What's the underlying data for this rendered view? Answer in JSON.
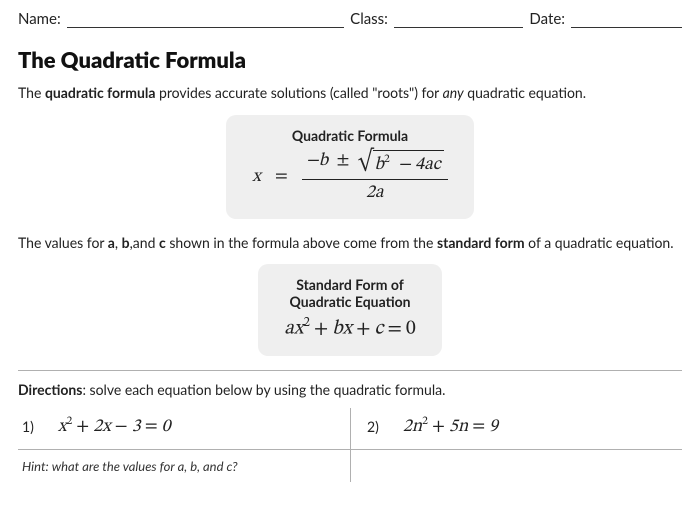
{
  "header": {
    "name_label": "Name:",
    "class_label": "Class:",
    "date_label": "Date:"
  },
  "title": "The Quadratic Formula",
  "intro": {
    "pre": "The ",
    "bold": "quadratic formula",
    "mid": " provides accurate solutions (called \"roots\") for ",
    "em": "any",
    "post": " quadratic equation."
  },
  "formula_card": {
    "title": "Quadratic Formula",
    "lhs": "x",
    "eq": "=",
    "num_pre": "−b",
    "num_pm": "±",
    "rad_sym": "√",
    "rad_arg_b": "b",
    "rad_arg_exp": "2",
    "rad_arg_rest": "− 4ac",
    "den": "2a"
  },
  "std_intro": {
    "pre": "The values for ",
    "a": "a",
    "comma1": ", ",
    "b": "b",
    "comma2": ",",
    "and": "and ",
    "c": "c",
    "mid": " shown in the formula above come from the ",
    "bold": "standard form",
    "post": " of a quadratic equation."
  },
  "std_card": {
    "title_l1": "Standard Form of",
    "title_l2": "Quadratic Equation",
    "a": "a",
    "x": "x",
    "exp": "2",
    "plus1": "+",
    "b": "b",
    "x2": "x",
    "plus2": "+",
    "c": "c",
    "eq": "=",
    "zero": "0"
  },
  "directions": {
    "label": "Directions",
    "text": ": solve each equation below by using the quadratic formula."
  },
  "problems": [
    {
      "num": "1)",
      "eq_html": "x<sup>2</sup><span class='op'>+</span>2x<span class='op'>−</span>3<span class='op'>=</span>0"
    },
    {
      "num": "2)",
      "eq_html": "2n<sup>2</sup><span class='op'>+</span>5n<span class='op'>=</span>9"
    }
  ],
  "hint": "Hint: what are the values for a, b, and c?",
  "colors": {
    "card_bg": "#efefef",
    "text": "#222222",
    "rule": "#b0b0b0"
  }
}
